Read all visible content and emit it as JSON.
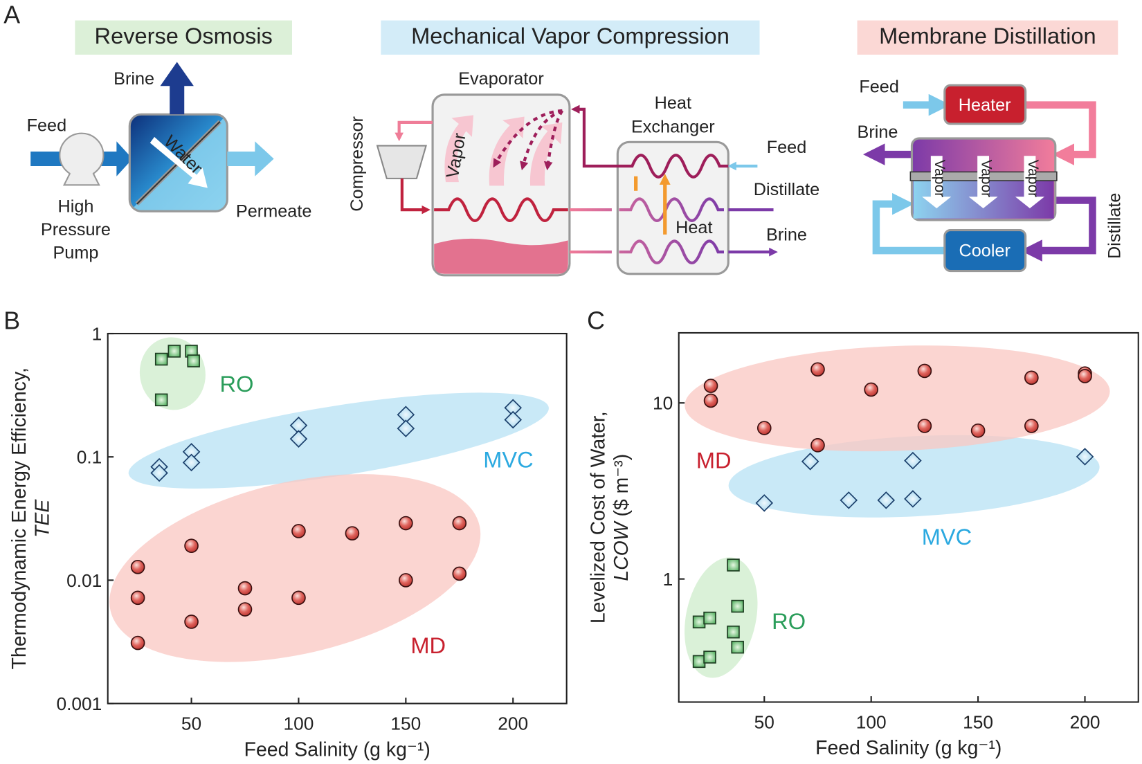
{
  "panels": {
    "a": {
      "label": "A",
      "ro": {
        "title": "Reverse Osmosis",
        "brine": "Brine",
        "feed": "Feed",
        "water": "Water",
        "pump": [
          "High",
          "Pressure",
          "Pump"
        ],
        "permeate": "Permeate"
      },
      "mvc": {
        "title": "Mechanical Vapor Compression",
        "evaporator": "Evaporator",
        "compressor": "Compressor",
        "vapor": "Vapor",
        "heat_exchanger": [
          "Heat",
          "Exchanger"
        ],
        "feed": "Feed",
        "distillate": "Distillate",
        "brine": "Brine",
        "heat": "Heat"
      },
      "md": {
        "title": "Membrane Distillation",
        "feed": "Feed",
        "heater": "Heater",
        "brine": "Brine",
        "vapor": [
          "Vapor",
          "Vapor",
          "Vapor"
        ],
        "cooler": "Cooler",
        "distillate": "Distillate"
      }
    },
    "b": {
      "label": "B"
    },
    "c": {
      "label": "C"
    }
  },
  "chart_data": [
    {
      "type": "scatter",
      "x_label": "Feed Salinity (g kg⁻¹)",
      "y_label": {
        "line1": "Thermodynamic Energy Efficiency,",
        "italic": "TEE",
        "unit": ""
      },
      "xlim": [
        11,
        225
      ],
      "xticks": [
        50,
        100,
        150,
        200
      ],
      "ylim": [
        0.001,
        1
      ],
      "yticks": [
        1,
        0.1,
        0.01,
        0.001
      ],
      "log_y": true,
      "series": [
        {
          "name": "RO",
          "color": "#2a9d5a",
          "marker": "square",
          "x": [
            36,
            42,
            50,
            51,
            36
          ],
          "values": [
            0.62,
            0.72,
            0.72,
            0.6,
            0.29
          ]
        },
        {
          "name": "MVC",
          "color": "#2ba9e0",
          "marker": "diamond",
          "x": [
            35,
            35,
            50,
            50,
            100,
            100,
            150,
            150,
            200,
            200
          ],
          "values": [
            0.083,
            0.074,
            0.11,
            0.09,
            0.18,
            0.14,
            0.22,
            0.17,
            0.25,
            0.2
          ]
        },
        {
          "name": "MD",
          "color": "#c8202e",
          "marker": "circle",
          "x": [
            25,
            25,
            25,
            50,
            50,
            75,
            75,
            100,
            100,
            125,
            150,
            150,
            175,
            175
          ],
          "values": [
            0.0128,
            0.0072,
            0.0031,
            0.019,
            0.0046,
            0.0086,
            0.0058,
            0.025,
            0.0072,
            0.024,
            0.029,
            0.01,
            0.029,
            0.0113
          ]
        }
      ]
    },
    {
      "type": "scatter",
      "x_label": "Feed Salinity (g kg⁻¹)",
      "y_label": {
        "line1": "Levelized Cost of Water,",
        "italic": "LCOW",
        "unit": " ($ m⁻³)"
      },
      "xlim": [
        10,
        225
      ],
      "xticks": [
        50,
        100,
        150,
        200
      ],
      "ylim": [
        0.2,
        25
      ],
      "yticks": [
        10,
        1
      ],
      "log_y": true,
      "series": [
        {
          "name": "RO",
          "color": "#2a9d5a",
          "marker": "square",
          "x": [
            19.5,
            24.5,
            35.5,
            37.5,
            35.5,
            37.5,
            19.5,
            24.5
          ],
          "values": [
            0.57,
            0.6,
            1.2,
            0.7,
            0.5,
            0.41,
            0.34,
            0.36
          ]
        },
        {
          "name": "MVC",
          "color": "#2ba9e0",
          "marker": "diamond",
          "x": [
            50,
            71.5,
            89.5,
            107,
            119.5,
            119.5,
            200
          ],
          "values": [
            2.7,
            4.65,
            2.8,
            2.8,
            4.7,
            2.85,
            4.95
          ]
        },
        {
          "name": "MD",
          "color": "#c8202e",
          "marker": "circle",
          "x": [
            25,
            25,
            50,
            75,
            75,
            100,
            125,
            125,
            150,
            175,
            175,
            200,
            200
          ],
          "values": [
            12.5,
            10.3,
            7.2,
            15.5,
            5.75,
            11.9,
            15.2,
            7.4,
            6.96,
            13.9,
            7.4,
            14.7,
            14.2
          ]
        }
      ]
    }
  ]
}
